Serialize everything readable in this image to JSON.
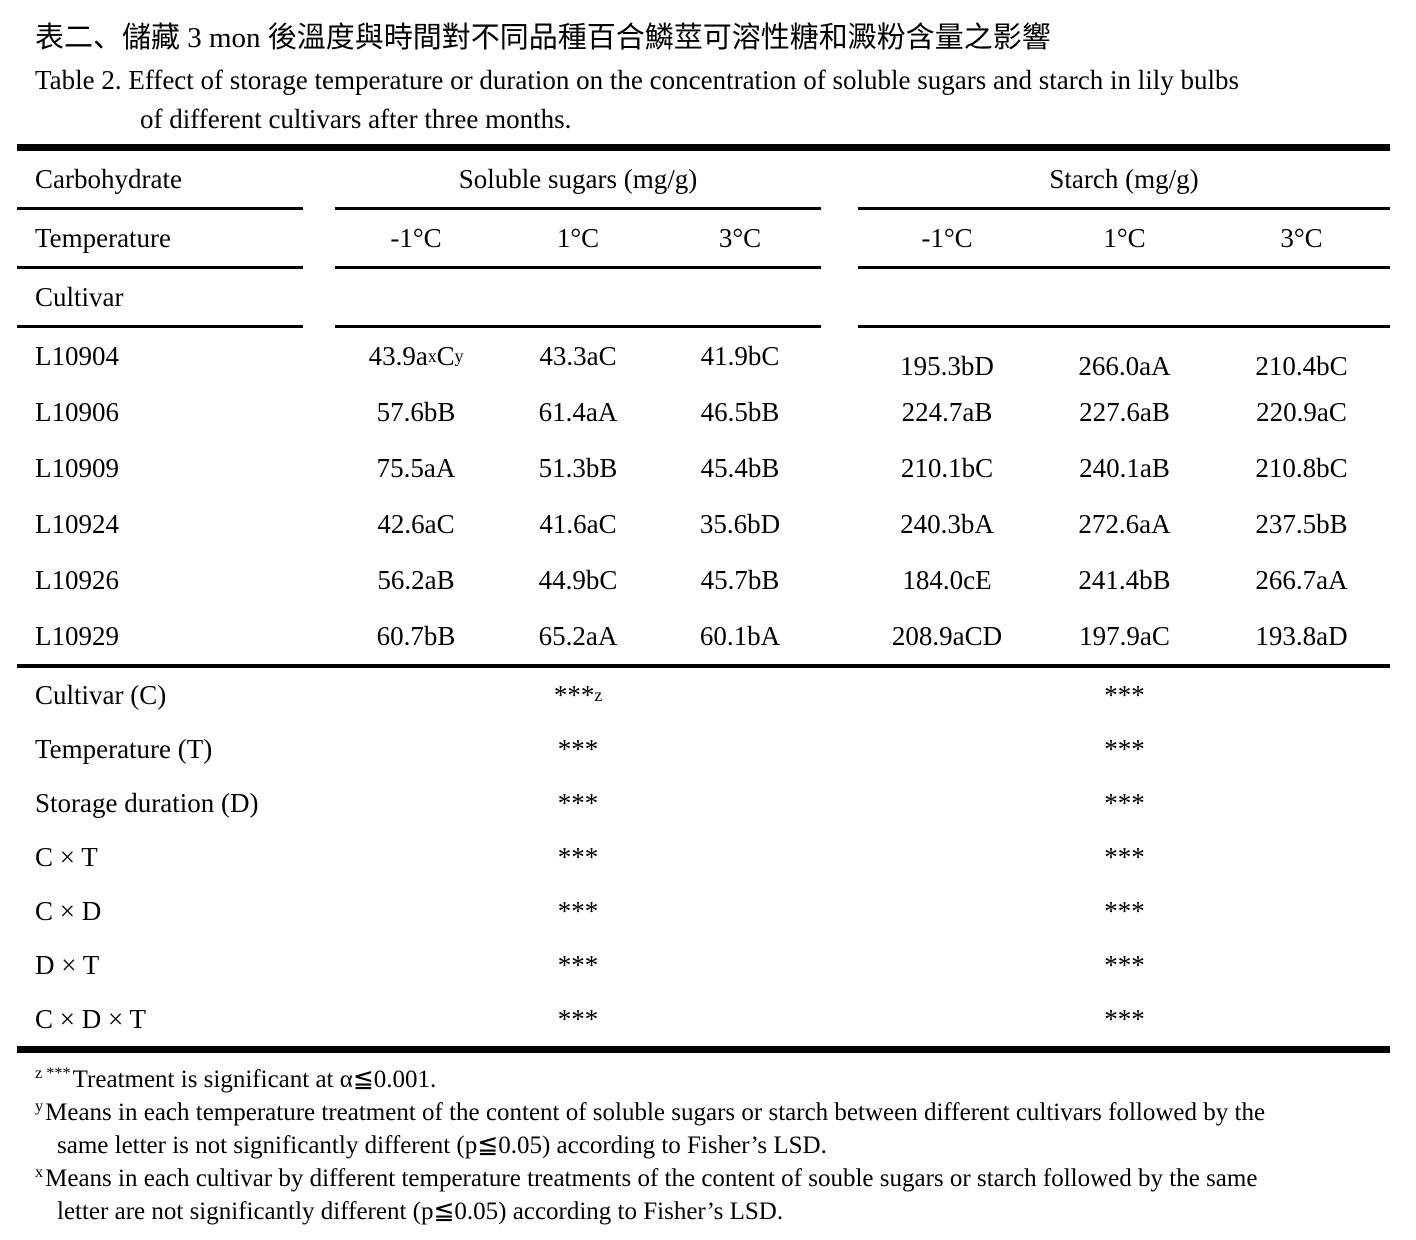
{
  "title": {
    "zh": "表二、儲藏 3 mon 後溫度與時間對不同品種百合鱗莖可溶性糖和澱粉含量之影響",
    "en_line1": "Table 2. Effect of storage temperature or duration on the concentration of soluble sugars and starch in lily bulbs",
    "en_line2": "of different cultivars after three months."
  },
  "table": {
    "corner_label": "Carbohydrate",
    "group_sugars": "Soluble sugars (mg/g)",
    "group_starch": "Starch (mg/g)",
    "temperature_label": "Temperature",
    "sugars_temps": [
      "-1°C",
      "1°C",
      "3°C"
    ],
    "starch_temps": [
      "-1°C",
      "1°C",
      "3°C"
    ],
    "cultivar_label": "Cultivar",
    "rows": [
      {
        "cultivar": "L10904",
        "c1": {
          "base": "43.9a",
          "sup1": "x",
          "mid": "C",
          "sup2": "y"
        },
        "sugars": [
          "43.3aC",
          "41.9bC"
        ],
        "starch": [
          "195.3bD",
          "266.0aA",
          "210.4bC"
        ]
      },
      {
        "cultivar": "L10906",
        "sugars": [
          "57.6bB",
          "61.4aA",
          "46.5bB"
        ],
        "starch": [
          "224.7aB",
          "227.6aB",
          "220.9aC"
        ]
      },
      {
        "cultivar": "L10909",
        "sugars": [
          "75.5aA",
          "51.3bB",
          "45.4bB"
        ],
        "starch": [
          "210.1bC",
          "240.1aB",
          "210.8bC"
        ]
      },
      {
        "cultivar": "L10924",
        "sugars": [
          "42.6aC",
          "41.6aC",
          "35.6bD"
        ],
        "starch": [
          "240.3bA",
          "272.6aA",
          "237.5bB"
        ]
      },
      {
        "cultivar": "L10926",
        "sugars": [
          "56.2aB",
          "44.9bC",
          "45.7bB"
        ],
        "starch": [
          "184.0cE",
          "241.4bB",
          "266.7aA"
        ]
      },
      {
        "cultivar": "L10929",
        "sugars": [
          "60.7bB",
          "65.2aA",
          "60.1bA"
        ],
        "starch": [
          "208.9aCD",
          "197.9aC",
          "193.8aD"
        ]
      }
    ],
    "stats": [
      {
        "label": "Cultivar (C)",
        "sugars": "***",
        "sup": "z",
        "starch": "***"
      },
      {
        "label": "Temperature (T)",
        "sugars": "***",
        "starch": "***"
      },
      {
        "label": "Storage duration (D)",
        "sugars": "***",
        "starch": "***"
      },
      {
        "label": "C × T",
        "sugars": "***",
        "starch": "***"
      },
      {
        "label": "C × D",
        "sugars": "***",
        "starch": "***"
      },
      {
        "label": "D × T",
        "sugars": "***",
        "starch": "***"
      },
      {
        "label": "C × D × T",
        "sugars": "***",
        "starch": "***"
      }
    ]
  },
  "footnotes": [
    {
      "sup": "z ***",
      "lines": [
        "Treatment is significant at α≦0.001."
      ]
    },
    {
      "sup": "y",
      "lines": [
        "Means in each temperature treatment of the content of soluble sugars or starch between different cultivars followed by the",
        "same letter is not significantly different (p≦0.05) according to Fisher’s LSD."
      ]
    },
    {
      "sup": "x",
      "lines": [
        "Means in each cultivar by different temperature treatments of the content of souble sugars or starch followed by the same",
        "letter are not significantly different (p≦0.05) according to Fisher’s LSD."
      ]
    }
  ]
}
